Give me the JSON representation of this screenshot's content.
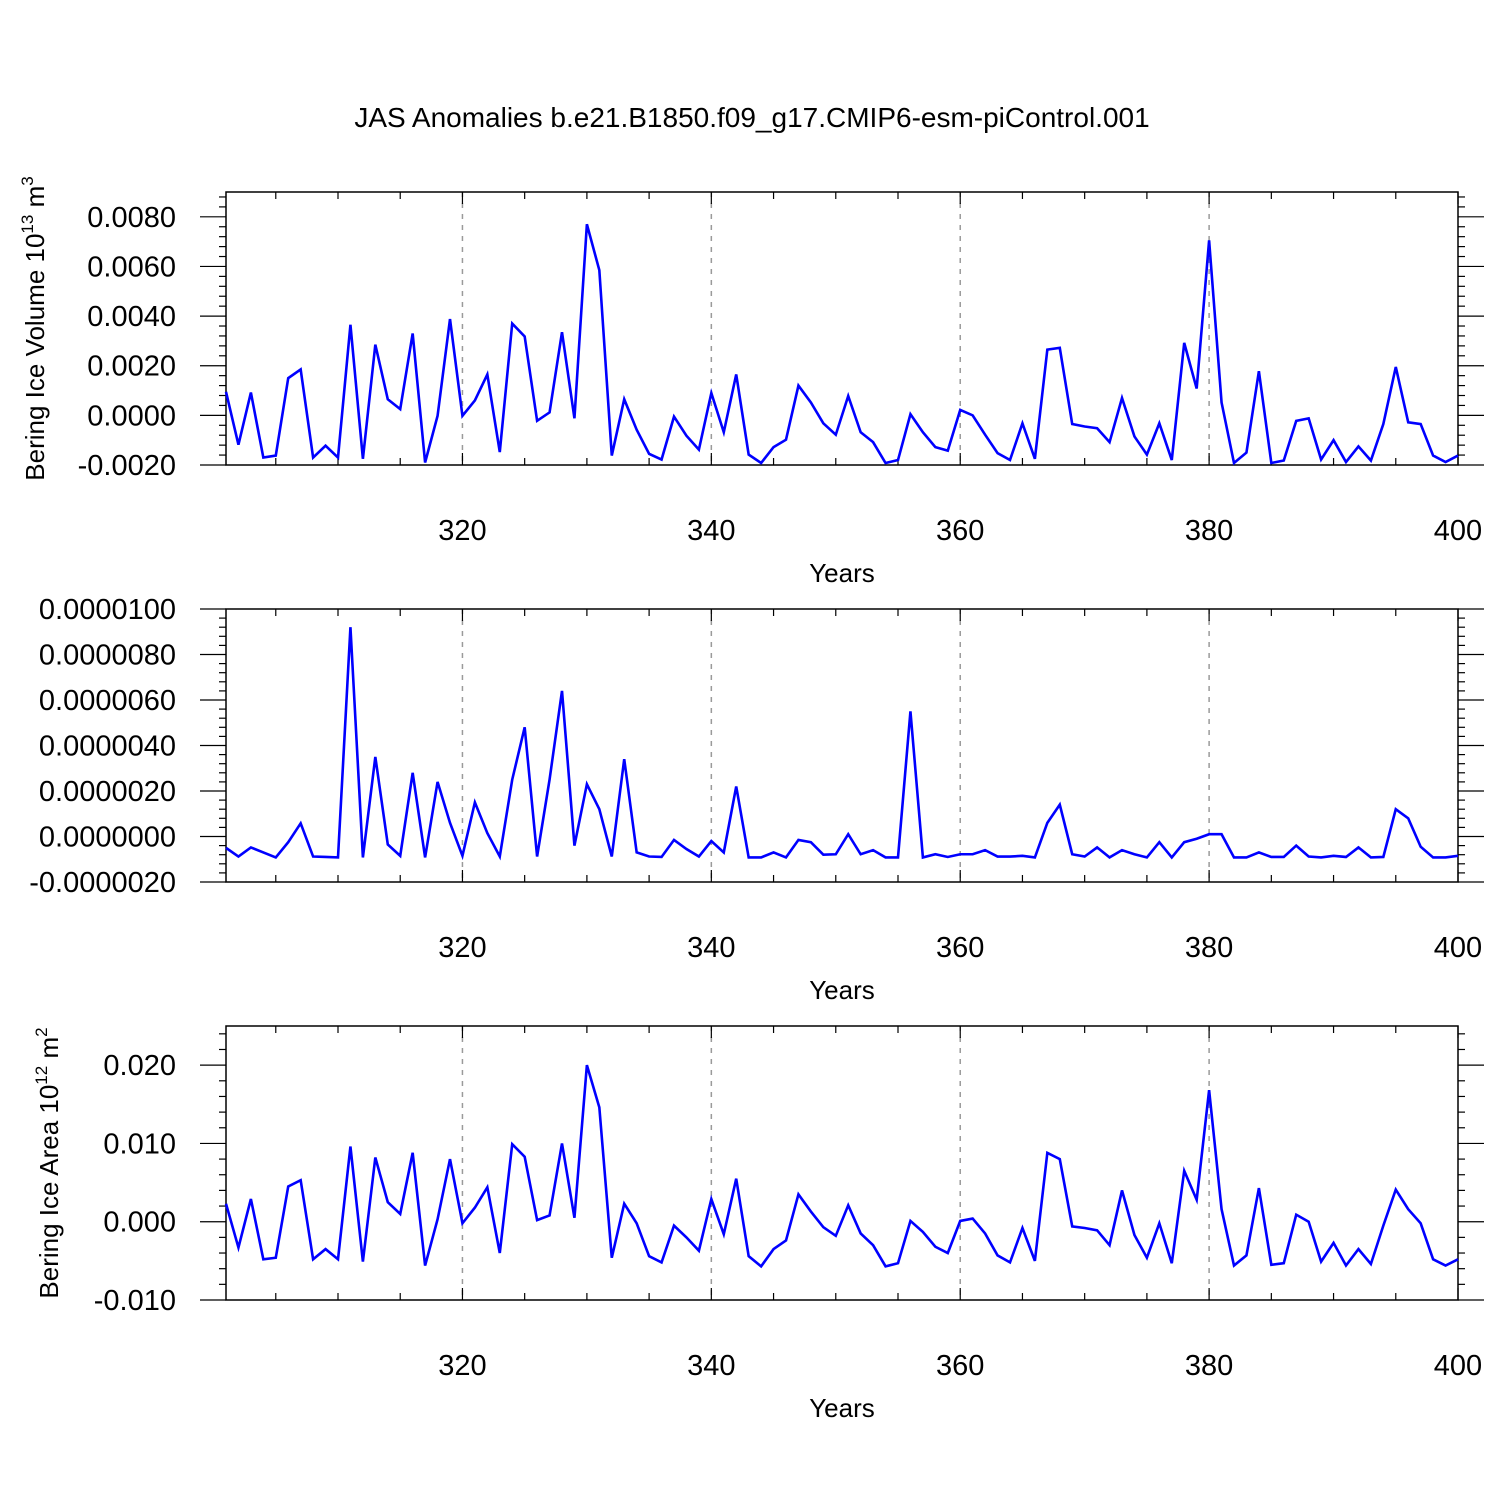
{
  "title": "JAS Anomalies b.e21.B1850.f09_g17.CMIP6-esm-piControl.001",
  "colors": {
    "series": "#0000ff",
    "axis": "#000000",
    "grid": "#9a9a9a",
    "background": "#ffffff"
  },
  "chart_data": [
    {
      "type": "line",
      "ylabel_main": "Bering Ice Volume 10",
      "ylabel_exp": "13",
      "ylabel_unit": " m",
      "ylabel_unit_exp": "3",
      "xlabel": "Years",
      "xlim": [
        301,
        400
      ],
      "ylim": [
        -0.002,
        0.009
      ],
      "y_ticks": [
        -0.002,
        0.0,
        0.002,
        0.004,
        0.006,
        0.008
      ],
      "y_tick_labels": [
        "-0.0020",
        "0.0000",
        "0.0020",
        "0.0040",
        "0.0060",
        "0.0080"
      ],
      "x_ticks": [
        320,
        340,
        360,
        380,
        400
      ],
      "x_tick_labels": [
        "320",
        "340",
        "360",
        "380",
        "400"
      ],
      "grid": "vertical dashed at major x ticks",
      "x_start": 301,
      "values": [
        0.00095,
        -0.00118,
        0.00092,
        -0.0017,
        -0.00162,
        0.0015,
        0.00185,
        -0.0017,
        -0.00122,
        -0.0017,
        0.00365,
        -0.00175,
        0.00285,
        0.00065,
        0.00025,
        0.0033,
        -0.0019,
        -2e-05,
        0.00388,
        -2e-05,
        0.0006,
        0.00165,
        -0.00148,
        0.0037,
        0.00318,
        -0.00022,
        0.00012,
        0.00335,
        -0.00012,
        0.0077,
        0.00585,
        -0.00162,
        0.00065,
        -0.00058,
        -0.00155,
        -0.00178,
        -5e-05,
        -0.00082,
        -0.00138,
        0.0009,
        -0.00068,
        0.00165,
        -0.00158,
        -0.00192,
        -0.00128,
        -0.00098,
        0.0012,
        0.00052,
        -0.00032,
        -0.00078,
        0.00078,
        -0.00068,
        -0.00108,
        -0.00192,
        -0.0018,
        5e-05,
        -0.00068,
        -0.00128,
        -0.00142,
        0.00022,
        0.0,
        -0.00078,
        -0.00152,
        -0.0018,
        -0.00032,
        -0.00175,
        0.00265,
        0.00272,
        -0.00035,
        -0.00045,
        -0.00052,
        -0.00108,
        0.0007,
        -0.00085,
        -0.00158,
        -0.00032,
        -0.0018,
        0.00292,
        0.00108,
        0.00705,
        0.00052,
        -0.00192,
        -0.0015,
        0.00178,
        -0.00192,
        -0.00182,
        -0.00022,
        -0.00012,
        -0.00178,
        -0.001,
        -0.00188,
        -0.00125,
        -0.00182,
        -0.00035,
        0.00195,
        -0.00028,
        -0.00035,
        -0.00162,
        -0.00188,
        -0.00162
      ]
    },
    {
      "type": "line",
      "ylabel_main": "",
      "xlabel": "Years",
      "xlim": [
        301,
        400
      ],
      "ylim": [
        -2e-06,
        1e-05
      ],
      "y_ticks": [
        -2e-06,
        0.0,
        2e-06,
        4e-06,
        6e-06,
        8e-06,
        1e-05
      ],
      "y_tick_labels": [
        "-0.0000020",
        "0.0000000",
        "0.0000020",
        "0.0000040",
        "0.0000060",
        "0.0000080",
        "0.0000100"
      ],
      "x_ticks": [
        320,
        340,
        360,
        380,
        400
      ],
      "x_tick_labels": [
        "320",
        "340",
        "360",
        "380",
        "400"
      ],
      "grid": "vertical dashed at major x ticks",
      "x_start": 301,
      "values": [
        -5e-07,
        -8.8e-07,
        -4.8e-07,
        -7e-07,
        -9.2e-07,
        -2.5e-07,
        5.8e-07,
        -8.8e-07,
        -9e-07,
        -9.2e-07,
        9.2e-06,
        -9.2e-07,
        3.5e-06,
        -3.5e-07,
        -8.5e-07,
        2.8e-06,
        -9.2e-07,
        2.4e-06,
        6e-07,
        -8.5e-07,
        1.5e-06,
        1.5e-07,
        -8.8e-07,
        2.5e-06,
        4.8e-06,
        -8.8e-07,
        2.5e-06,
        6.4e-06,
        -4e-07,
        2.3e-06,
        1.2e-06,
        -8.8e-07,
        3.4e-06,
        -7e-07,
        -8.8e-07,
        -9e-07,
        -1.5e-07,
        -5.5e-07,
        -8.8e-07,
        -2e-07,
        -7e-07,
        2.2e-06,
        -9.2e-07,
        -9.2e-07,
        -7e-07,
        -9.2e-07,
        -1.5e-07,
        -2.5e-07,
        -8e-07,
        -7.8e-07,
        1e-07,
        -7.8e-07,
        -6e-07,
        -9.2e-07,
        -9.2e-07,
        5.5e-06,
        -9.2e-07,
        -7.8e-07,
        -9e-07,
        -7.8e-07,
        -7.8e-07,
        -6e-07,
        -8.8e-07,
        -8.8e-07,
        -8.5e-07,
        -9.2e-07,
        6e-07,
        1.4e-06,
        -7.8e-07,
        -8.8e-07,
        -4.8e-07,
        -9.2e-07,
        -6e-07,
        -7.8e-07,
        -9.2e-07,
        -2.5e-07,
        -9.2e-07,
        -2.5e-07,
        -1e-07,
        1e-07,
        1e-07,
        -9.2e-07,
        -9.2e-07,
        -7e-07,
        -9e-07,
        -9e-07,
        -4e-07,
        -8.8e-07,
        -9.2e-07,
        -8.5e-07,
        -9e-07,
        -4.8e-07,
        -9.2e-07,
        -9e-07,
        1.2e-06,
        8e-07,
        -4.5e-07,
        -9.2e-07,
        -9.2e-07,
        -8.5e-07
      ]
    },
    {
      "type": "line",
      "ylabel_main": "Bering Ice Area 10",
      "ylabel_exp": "12",
      "ylabel_unit": " m",
      "ylabel_unit_exp": "2",
      "xlabel": "Years",
      "xlim": [
        301,
        400
      ],
      "ylim": [
        -0.01,
        0.025
      ],
      "y_ticks": [
        -0.01,
        0.0,
        0.01,
        0.02
      ],
      "y_tick_labels": [
        "-0.010",
        "0.000",
        "0.010",
        "0.020"
      ],
      "x_ticks": [
        320,
        340,
        360,
        380,
        400
      ],
      "x_tick_labels": [
        "320",
        "340",
        "360",
        "380",
        "400"
      ],
      "grid": "vertical dashed at major x ticks",
      "x_start": 301,
      "values": [
        0.0023,
        -0.0033,
        0.0029,
        -0.0048,
        -0.0046,
        0.0045,
        0.0053,
        -0.0048,
        -0.0035,
        -0.0048,
        0.0096,
        -0.0051,
        0.0082,
        0.0025,
        0.001,
        0.0088,
        -0.0056,
        0.0003,
        0.008,
        -0.0002,
        0.0018,
        0.0044,
        -0.004,
        0.0099,
        0.0083,
        0.0002,
        0.0008,
        0.01,
        0.0005,
        0.02,
        0.0146,
        -0.0046,
        0.0023,
        -0.0002,
        -0.0044,
        -0.0052,
        -0.0005,
        -0.002,
        -0.0037,
        0.0029,
        -0.0016,
        0.0055,
        -0.0044,
        -0.0057,
        -0.0035,
        -0.0024,
        0.0035,
        0.0013,
        -0.0007,
        -0.0018,
        0.0021,
        -0.0015,
        -0.003,
        -0.0057,
        -0.0053,
        0.0001,
        -0.0013,
        -0.0032,
        -0.004,
        0.0001,
        0.0004,
        -0.0015,
        -0.0043,
        -0.0052,
        -0.0008,
        -0.005,
        0.0088,
        0.008,
        -0.0006,
        -0.0008,
        -0.0011,
        -0.003,
        0.004,
        -0.0017,
        -0.0046,
        -0.0002,
        -0.0053,
        0.0065,
        0.0028,
        0.0168,
        0.0016,
        -0.0056,
        -0.0043,
        0.0043,
        -0.0055,
        -0.0053,
        0.0009,
        0.0,
        -0.0051,
        -0.0027,
        -0.0056,
        -0.0035,
        -0.0054,
        -0.0005,
        0.0041,
        0.0016,
        -0.0002,
        -0.0048,
        -0.0056,
        -0.0048
      ]
    }
  ]
}
